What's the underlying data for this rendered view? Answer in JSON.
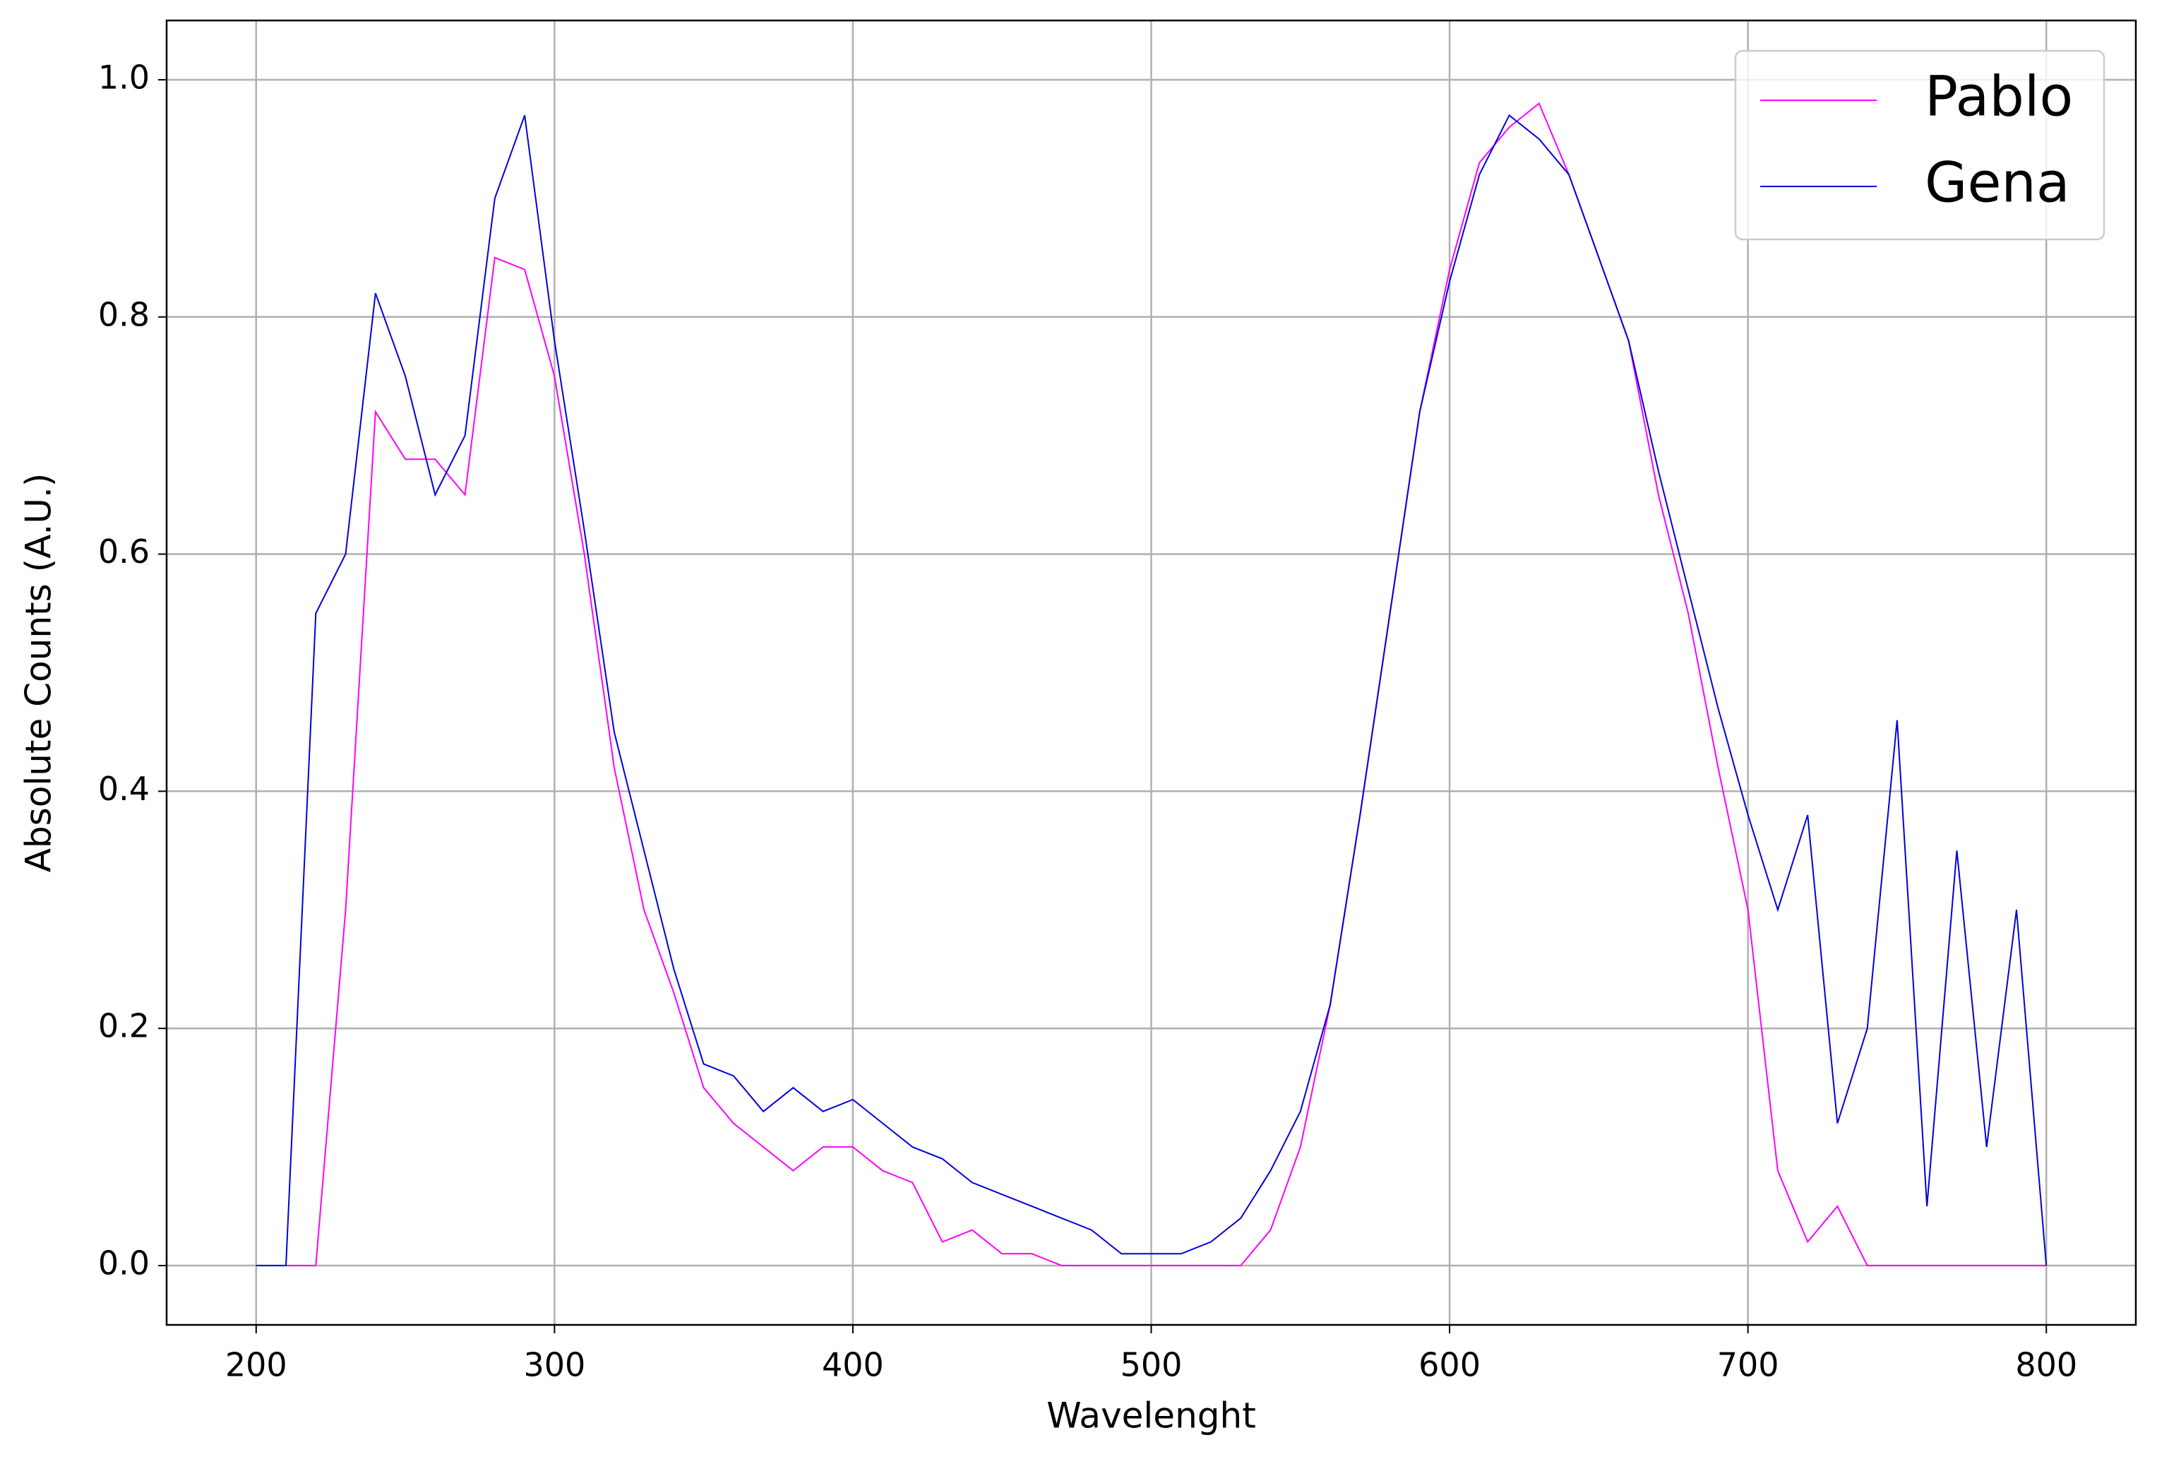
{
  "chart_data": {
    "type": "line",
    "x_label": "Wavelenght",
    "y_label": "Absolute Counts (A.U.)",
    "x": [
      200,
      210,
      220,
      230,
      240,
      250,
      260,
      270,
      280,
      290,
      300,
      310,
      320,
      330,
      340,
      350,
      360,
      370,
      380,
      390,
      400,
      410,
      420,
      430,
      440,
      450,
      460,
      470,
      480,
      490,
      500,
      510,
      520,
      530,
      540,
      550,
      560,
      570,
      580,
      590,
      600,
      610,
      620,
      630,
      640,
      650,
      660,
      670,
      680,
      690,
      700,
      710,
      720,
      730,
      740,
      750,
      760,
      770,
      780,
      790,
      800
    ],
    "series": [
      {
        "name": "Pablo",
        "color": "#ff00ff",
        "values": [
          0,
          0,
          0,
          0.3,
          0.72,
          0.68,
          0.68,
          0.65,
          0.85,
          0.84,
          0.75,
          0.6,
          0.42,
          0.3,
          0.23,
          0.15,
          0.12,
          0.1,
          0.08,
          0.1,
          0.1,
          0.08,
          0.07,
          0.02,
          0.03,
          0.01,
          0.01,
          0,
          0,
          0,
          0,
          0,
          0,
          0,
          0.03,
          0.1,
          0.22,
          0.38,
          0.55,
          0.72,
          0.84,
          0.93,
          0.96,
          0.98,
          0.92,
          0.85,
          0.78,
          0.65,
          0.55,
          0.42,
          0.3,
          0.08,
          0.02,
          0.05,
          0,
          0,
          0,
          0,
          0,
          0,
          0
        ]
      },
      {
        "name": "Gena",
        "color": "#0000dd",
        "values": [
          0,
          0,
          0.55,
          0.6,
          0.82,
          0.75,
          0.65,
          0.7,
          0.9,
          0.97,
          0.78,
          0.62,
          0.45,
          0.35,
          0.25,
          0.17,
          0.16,
          0.13,
          0.15,
          0.13,
          0.14,
          0.12,
          0.1,
          0.09,
          0.07,
          0.06,
          0.05,
          0.04,
          0.03,
          0.01,
          0.01,
          0.01,
          0.02,
          0.04,
          0.08,
          0.13,
          0.22,
          0.38,
          0.55,
          0.72,
          0.83,
          0.92,
          0.97,
          0.95,
          0.92,
          0.85,
          0.78,
          0.67,
          0.57,
          0.47,
          0.38,
          0.3,
          0.38,
          0.12,
          0.2,
          0.46,
          0.05,
          0.35,
          0.1,
          0.3,
          0
        ]
      }
    ],
    "xlim": [
      170,
      830
    ],
    "ylim": [
      -0.05,
      1.05
    ],
    "xticks": [
      200,
      300,
      400,
      500,
      600,
      700,
      800
    ],
    "yticks": [
      {
        "value": 0,
        "label": "0.0"
      },
      {
        "value": 0.2,
        "label": "0.2"
      },
      {
        "value": 0.4,
        "label": "0.4"
      },
      {
        "value": 0.6,
        "label": "0.6"
      },
      {
        "value": 0.8,
        "label": "0.8"
      },
      {
        "value": 1,
        "label": "1.0"
      }
    ],
    "grid": true,
    "legend": "upper right"
  }
}
